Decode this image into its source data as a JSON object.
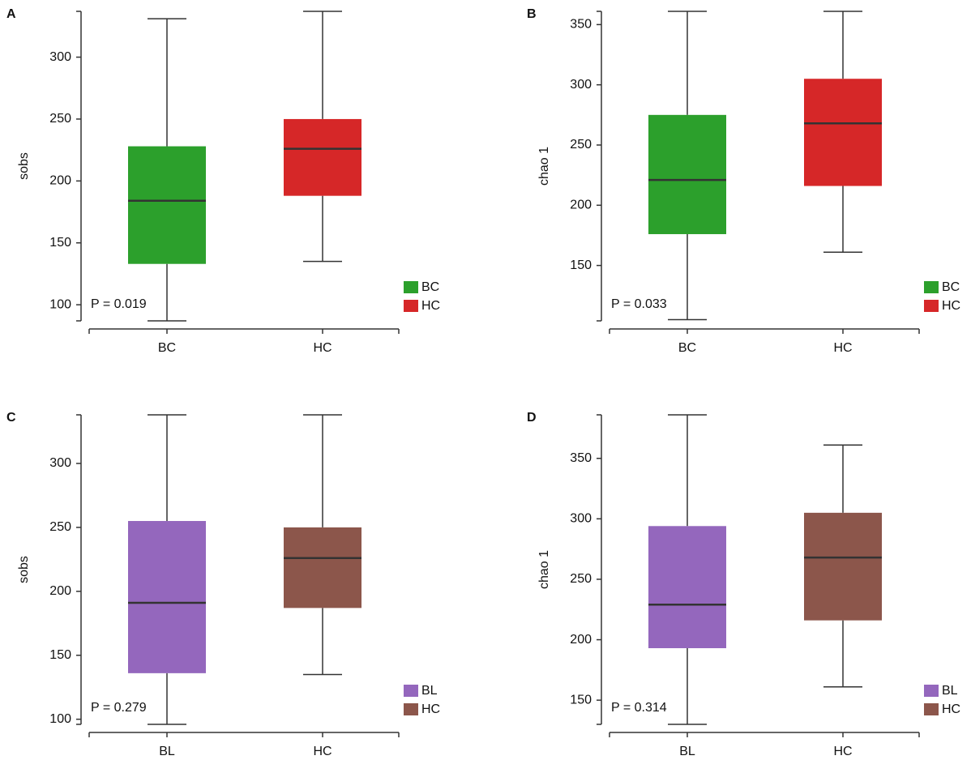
{
  "chart_data": [
    {
      "type": "box",
      "panel": "A",
      "ylabel": "sobs",
      "categories": [
        "BC",
        "HC"
      ],
      "series": [
        {
          "name": "BC",
          "color": "#2ca02c",
          "min": 87,
          "q1": 133,
          "median": 184,
          "q3": 228,
          "max": 331
        },
        {
          "name": "HC",
          "color": "#d62728",
          "min": 135,
          "q1": 188,
          "median": 226,
          "q3": 250,
          "max": 337
        }
      ],
      "ylim": [
        87,
        337
      ],
      "yticks": [
        100,
        150,
        200,
        250,
        300
      ],
      "annotation": "P = 0.019",
      "legend": "lower right"
    },
    {
      "type": "box",
      "panel": "B",
      "ylabel": "chao 1",
      "categories": [
        "BC",
        "HC"
      ],
      "series": [
        {
          "name": "BC",
          "color": "#2ca02c",
          "min": 105,
          "q1": 176,
          "median": 221,
          "q3": 275,
          "max": 361
        },
        {
          "name": "HC",
          "color": "#d62728",
          "min": 161,
          "q1": 216,
          "median": 268,
          "q3": 305,
          "max": 361
        }
      ],
      "ylim": [
        104,
        361
      ],
      "yticks": [
        150,
        200,
        250,
        300,
        350
      ],
      "annotation": "P = 0.033",
      "legend": "lower right"
    },
    {
      "type": "box",
      "panel": "C",
      "ylabel": "sobs",
      "categories": [
        "BL",
        "HC"
      ],
      "series": [
        {
          "name": "BL",
          "color": "#9467bd",
          "min": 96,
          "q1": 136,
          "median": 191,
          "q3": 255,
          "max": 338
        },
        {
          "name": "HC",
          "color": "#8c564b",
          "min": 135,
          "q1": 187,
          "median": 226,
          "q3": 250,
          "max": 338
        }
      ],
      "ylim": [
        96,
        338
      ],
      "yticks": [
        100,
        150,
        200,
        250,
        300
      ],
      "annotation": "P = 0.279",
      "legend": "lower right"
    },
    {
      "type": "box",
      "panel": "D",
      "ylabel": "chao 1",
      "categories": [
        "BL",
        "HC"
      ],
      "series": [
        {
          "name": "BL",
          "color": "#9467bd",
          "min": 130,
          "q1": 193,
          "median": 229,
          "q3": 294,
          "max": 386
        },
        {
          "name": "HC",
          "color": "#8c564b",
          "min": 161,
          "q1": 216,
          "median": 268,
          "q3": 305,
          "max": 361
        }
      ],
      "ylim": [
        130,
        386
      ],
      "yticks": [
        150,
        200,
        250,
        300,
        350
      ],
      "annotation": "P = 0.314",
      "legend": "lower right"
    }
  ]
}
